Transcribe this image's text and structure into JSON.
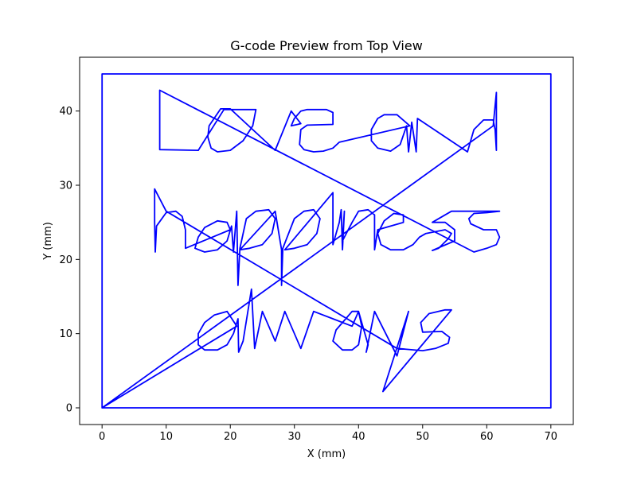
{
  "chart_data": {
    "type": "line",
    "title": "G-code Preview from Top View",
    "xlabel": "X (mm)",
    "ylabel": "Y (mm)",
    "xlim": [
      -3.5,
      73.5
    ],
    "ylim": [
      -2.25,
      47.25
    ],
    "xticks": [
      0,
      10,
      20,
      30,
      40,
      50,
      60,
      70
    ],
    "yticks": [
      0,
      10,
      20,
      30,
      40
    ],
    "grid": false,
    "line_color": "#0000ff",
    "series": [
      {
        "points": [
          [
            0,
            0
          ],
          [
            0,
            45
          ],
          [
            70,
            45
          ],
          [
            70,
            0
          ],
          [
            0,
            0
          ],
          [
            21,
            11
          ],
          [
            19.5,
            13
          ],
          [
            17.5,
            12.5
          ],
          [
            16,
            11.5
          ],
          [
            15,
            10
          ],
          [
            15,
            8.5
          ],
          [
            16,
            7.8
          ],
          [
            18,
            7.8
          ],
          [
            19.5,
            8.5
          ],
          [
            20.5,
            10
          ],
          [
            21.2,
            12
          ],
          [
            21.3,
            7.5
          ],
          [
            22,
            9
          ],
          [
            23.3,
            16
          ],
          [
            23.8,
            8
          ],
          [
            25,
            13
          ],
          [
            27,
            9
          ],
          [
            28.5,
            13
          ],
          [
            31,
            8
          ],
          [
            33,
            13
          ],
          [
            36,
            12
          ],
          [
            39,
            11
          ],
          [
            40,
            13
          ],
          [
            40.5,
            11
          ],
          [
            40,
            8.5
          ],
          [
            39,
            7.8
          ],
          [
            37.5,
            7.8
          ],
          [
            36,
            9
          ],
          [
            36.5,
            10.5
          ],
          [
            38,
            12
          ],
          [
            39,
            13
          ],
          [
            40,
            13
          ],
          [
            41.5,
            8.5
          ],
          [
            41.2,
            7.5
          ],
          [
            42.5,
            13
          ],
          [
            46,
            7
          ],
          [
            47.8,
            13
          ],
          [
            43.8,
            2.2
          ],
          [
            54.5,
            13.2
          ],
          [
            53.5,
            13.2
          ],
          [
            51,
            12.7
          ],
          [
            49.7,
            11.5
          ],
          [
            50,
            10.2
          ],
          [
            53,
            10.3
          ],
          [
            54.2,
            9.5
          ],
          [
            54,
            8.7
          ],
          [
            52,
            8
          ],
          [
            50,
            7.7
          ],
          [
            46,
            8
          ],
          [
            10,
            26.5
          ],
          [
            8.2,
            29.5
          ],
          [
            8.2,
            25
          ],
          [
            8.3,
            21
          ],
          [
            8.5,
            24.5
          ],
          [
            10,
            26.3
          ],
          [
            11.5,
            26.5
          ],
          [
            12.5,
            25.8
          ],
          [
            13,
            24
          ],
          [
            13,
            21.5
          ],
          [
            20,
            24
          ],
          [
            19.5,
            25
          ],
          [
            18,
            25.2
          ],
          [
            16,
            24.3
          ],
          [
            15,
            23
          ],
          [
            14.5,
            21.5
          ],
          [
            16,
            21
          ],
          [
            18,
            21.3
          ],
          [
            19.5,
            22.5
          ],
          [
            20.2,
            24.5
          ],
          [
            20.5,
            21
          ],
          [
            21,
            26.5
          ],
          [
            21.2,
            16.5
          ],
          [
            21.5,
            21.5
          ],
          [
            22.5,
            25.5
          ],
          [
            24,
            26.5
          ],
          [
            26,
            26.7
          ],
          [
            27,
            25.5
          ],
          [
            26.5,
            23.5
          ],
          [
            25,
            22
          ],
          [
            23,
            21.5
          ],
          [
            21.5,
            21.3
          ],
          [
            27,
            26.5
          ],
          [
            28,
            21.3
          ],
          [
            28,
            16.5
          ],
          [
            28.2,
            21.5
          ],
          [
            30,
            25.5
          ],
          [
            31.5,
            26.5
          ],
          [
            33,
            26.7
          ],
          [
            34,
            25.5
          ],
          [
            33.5,
            23.5
          ],
          [
            32,
            22
          ],
          [
            30,
            21.5
          ],
          [
            28.5,
            21.3
          ],
          [
            36,
            29
          ],
          [
            36,
            22
          ],
          [
            37,
            25
          ],
          [
            37.3,
            26.7
          ],
          [
            37.5,
            21.3
          ],
          [
            37.8,
            26.5
          ],
          [
            37.5,
            22.5
          ],
          [
            39,
            25
          ],
          [
            40,
            26.5
          ],
          [
            41.5,
            26.7
          ],
          [
            42.5,
            26
          ],
          [
            42.5,
            21.3
          ],
          [
            43,
            24
          ],
          [
            47,
            25
          ],
          [
            47,
            26
          ],
          [
            45.5,
            26.2
          ],
          [
            44,
            25.2
          ],
          [
            43,
            23.5
          ],
          [
            43.5,
            22
          ],
          [
            45,
            21.3
          ],
          [
            47,
            21.3
          ],
          [
            48.5,
            22
          ],
          [
            49.5,
            23
          ],
          [
            50.5,
            23.5
          ],
          [
            53.5,
            24
          ],
          [
            54.5,
            23.5
          ],
          [
            54,
            22.8
          ],
          [
            52.5,
            21.5
          ],
          [
            51.5,
            21.2
          ],
          [
            55,
            22.5
          ],
          [
            55,
            24
          ],
          [
            53.5,
            25
          ],
          [
            51.5,
            25
          ],
          [
            54.5,
            26.5
          ],
          [
            56,
            26.5
          ],
          [
            62,
            26.5
          ],
          [
            60,
            26.3
          ],
          [
            58,
            26.2
          ],
          [
            57.2,
            25.5
          ],
          [
            57.5,
            24.8
          ],
          [
            59.5,
            24
          ],
          [
            61.5,
            24
          ],
          [
            62,
            23
          ],
          [
            61.5,
            22
          ],
          [
            60,
            21.5
          ],
          [
            58,
            21
          ],
          [
            9,
            42.8
          ],
          [
            9,
            38
          ],
          [
            9,
            34.8
          ],
          [
            15,
            34.7
          ],
          [
            19,
            40.2
          ],
          [
            24,
            40.2
          ],
          [
            23.5,
            38
          ],
          [
            22,
            36
          ],
          [
            20,
            34.7
          ],
          [
            18,
            34.5
          ],
          [
            17,
            35
          ],
          [
            16.5,
            36.5
          ],
          [
            16.7,
            38
          ],
          [
            18.5,
            40.3
          ],
          [
            20,
            40.3
          ],
          [
            27,
            34.7
          ],
          [
            29.5,
            40
          ],
          [
            31,
            38.3
          ],
          [
            30.5,
            38.2
          ],
          [
            29.5,
            38
          ],
          [
            30,
            39
          ],
          [
            31,
            40
          ],
          [
            32,
            40.2
          ],
          [
            35,
            40.2
          ],
          [
            36,
            39.8
          ],
          [
            36,
            38.2
          ],
          [
            32,
            38.1
          ],
          [
            31,
            37.5
          ],
          [
            30.8,
            35.5
          ],
          [
            31.5,
            34.8
          ],
          [
            33,
            34.5
          ],
          [
            34.5,
            34.6
          ],
          [
            36,
            35
          ],
          [
            37,
            35.8
          ],
          [
            48,
            38
          ],
          [
            46,
            39.5
          ],
          [
            44,
            39.5
          ],
          [
            43,
            39
          ],
          [
            42,
            37.5
          ],
          [
            42,
            36
          ],
          [
            43,
            35
          ],
          [
            45,
            34.6
          ],
          [
            46.5,
            35.5
          ],
          [
            47.5,
            38
          ],
          [
            47.8,
            34.5
          ],
          [
            48.3,
            38.5
          ],
          [
            49,
            34.5
          ],
          [
            49.2,
            39
          ],
          [
            57,
            34.5
          ],
          [
            58,
            37.5
          ],
          [
            59.5,
            38.8
          ],
          [
            61,
            38.8
          ],
          [
            61.3,
            37.5
          ],
          [
            61.5,
            34.7
          ],
          [
            61.5,
            42.5
          ],
          [
            61,
            38
          ],
          [
            0,
            0
          ]
        ]
      }
    ]
  }
}
